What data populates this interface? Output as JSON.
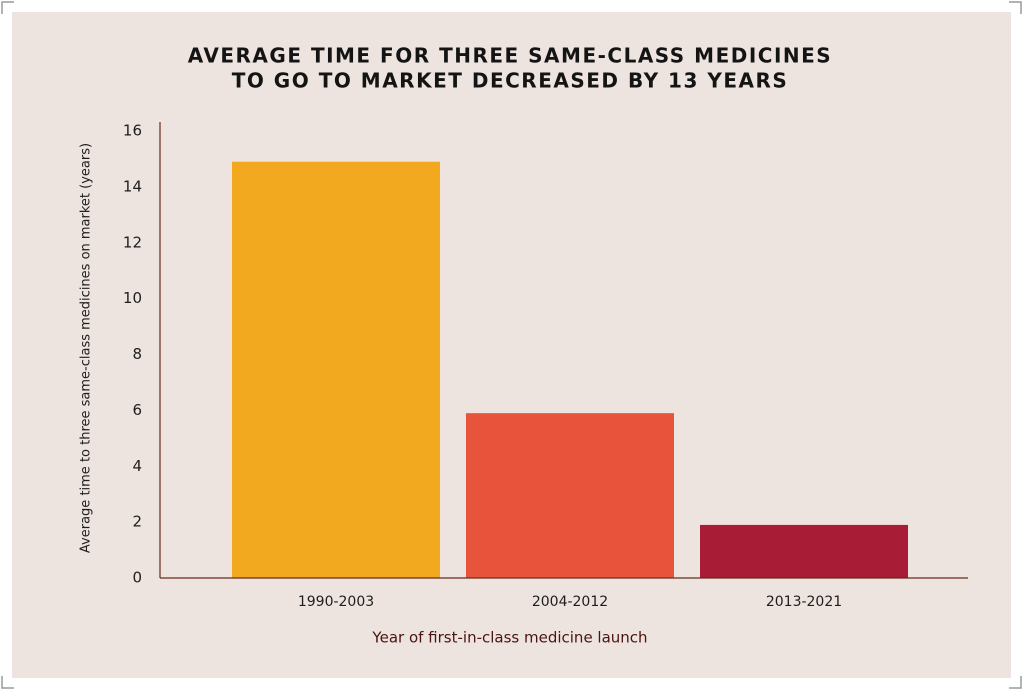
{
  "chart_data": {
    "type": "bar",
    "title": [
      "AVERAGE TIME FOR THREE SAME-CLASS MEDICINES",
      "TO GO TO MARKET DECREASED BY 13 YEARS"
    ],
    "x_label": "Year of first-in-class medicine launch",
    "y_label": "Average time to three same-class medicines on market (years)",
    "categories": [
      "1990-2003",
      "2004-2012",
      "2013-2021"
    ],
    "values": [
      14.9,
      5.9,
      1.9
    ],
    "colors": [
      "#f2a81f",
      "#e8533b",
      "#a81c36"
    ],
    "ylim": [
      0,
      16
    ],
    "yticks": [
      0,
      2,
      4,
      6,
      8,
      10,
      12,
      14,
      16
    ],
    "grid": false
  }
}
